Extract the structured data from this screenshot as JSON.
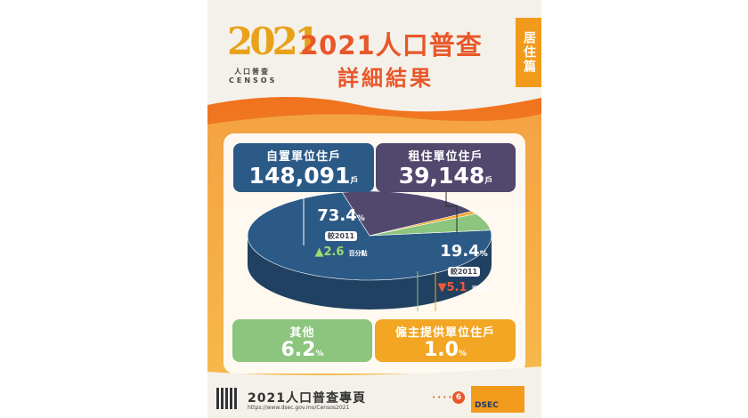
{
  "header": {
    "logo_number": "2021",
    "logo_cn": "人口普查",
    "logo_en": "CENSOS",
    "title": "2021人口普查",
    "subtitle": "詳細結果",
    "tag": "居住篇"
  },
  "chart_data": {
    "type": "pie",
    "categories": [
      "自置單位住戶",
      "租住單位住戶",
      "僱主提供單位住戶",
      "其他"
    ],
    "values": [
      73.4,
      19.4,
      1.0,
      6.2
    ],
    "households": [
      148091,
      39148,
      null,
      null
    ],
    "colors": [
      "#2c5a87",
      "#52486e",
      "#f2a623",
      "#8cc57d"
    ]
  },
  "boxes": {
    "owned": {
      "label": "自置單位住戶",
      "value": "148,091",
      "unit": "戶"
    },
    "rented": {
      "label": "租住單位住戶",
      "value": "39,148",
      "unit": "戶"
    },
    "other": {
      "label": "其他",
      "value": "6.2",
      "unit": "%"
    },
    "employer": {
      "label": "僱主提供單位住戶",
      "value": "1.0",
      "unit": "%"
    }
  },
  "pie_labels": {
    "owned": {
      "pct": "73.4",
      "sym": "%",
      "compare": "較2011",
      "change": "2.6",
      "change_unit": "百分點",
      "direction": "up"
    },
    "rented": {
      "pct": "19.4",
      "sym": "%",
      "compare": "較2011",
      "change": "5.1",
      "change_unit": "百分點",
      "direction": "down"
    }
  },
  "footer": {
    "title": "2021人口普查專頁",
    "url": "https://www.dsec.gov.mo/Censos2021",
    "dots": "•••••",
    "page": "6",
    "org": "DSEC"
  }
}
